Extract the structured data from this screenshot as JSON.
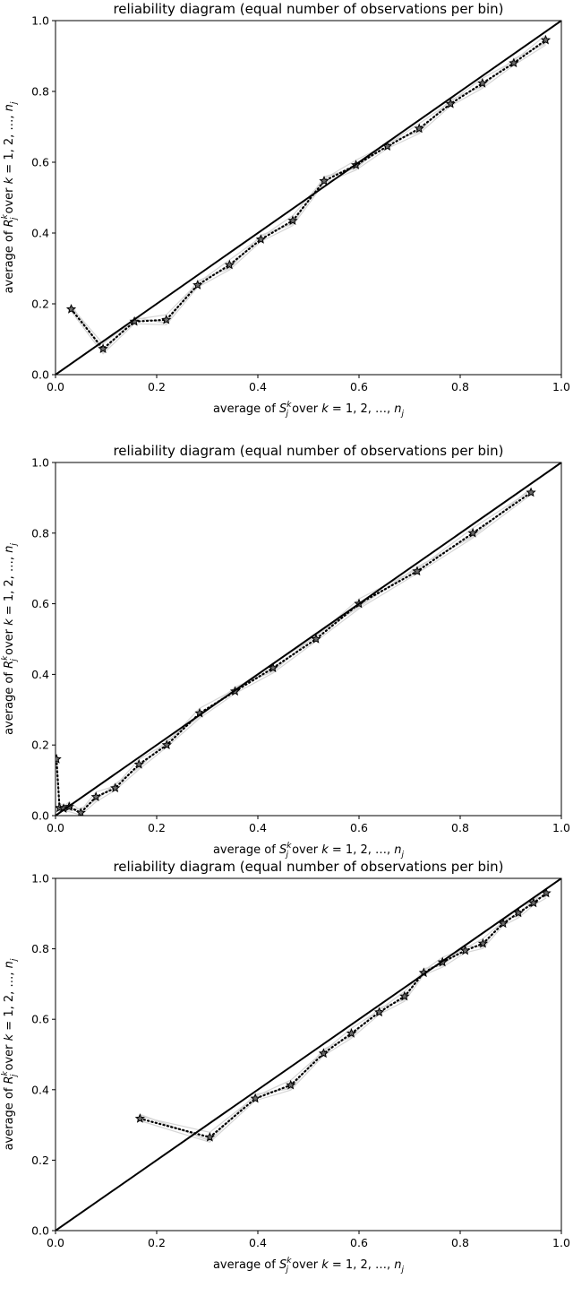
{
  "chart_data": [
    {
      "type": "line",
      "title": "reliability diagram (equal number of observations per bin)",
      "xlabel": {
        "prefix": "average of ",
        "var": "S",
        "sup": "k",
        "sub": "j",
        "mid": " over ",
        "k": "k",
        "eq": " = 1, 2, …, ",
        "n": "n",
        "nsub": "j"
      },
      "ylabel": {
        "prefix": "average of ",
        "var": "R",
        "sup": "k",
        "sub": "j",
        "mid": " over ",
        "k": "k",
        "eq": " = 1, 2, …, ",
        "n": "n",
        "nsub": "j"
      },
      "xlim": [
        0,
        1
      ],
      "ylim": [
        0,
        1
      ],
      "xticks": [
        "0.0",
        "0.2",
        "0.4",
        "0.6",
        "0.8",
        "1.0"
      ],
      "yticks": [
        "0.0",
        "0.2",
        "0.4",
        "0.6",
        "0.8",
        "1.0"
      ],
      "grid": false,
      "series": [
        {
          "style": "dotted-star",
          "x": [
            0.031,
            0.094,
            0.156,
            0.219,
            0.281,
            0.344,
            0.406,
            0.469,
            0.531,
            0.594,
            0.656,
            0.719,
            0.781,
            0.844,
            0.906,
            0.969
          ],
          "y": [
            0.185,
            0.073,
            0.15,
            0.155,
            0.253,
            0.31,
            0.382,
            0.435,
            0.547,
            0.592,
            0.645,
            0.695,
            0.765,
            0.823,
            0.88,
            0.945
          ]
        },
        {
          "style": "diagonal",
          "x": [
            0,
            1
          ],
          "y": [
            0,
            1
          ]
        }
      ]
    },
    {
      "type": "line",
      "title": "reliability diagram (equal number of observations per bin)",
      "xlabel": {
        "prefix": "average of ",
        "var": "S",
        "sup": "k",
        "sub": "j",
        "mid": " over ",
        "k": "k",
        "eq": " = 1, 2, …, ",
        "n": "n",
        "nsub": "j"
      },
      "ylabel": {
        "prefix": "average of ",
        "var": "R",
        "sup": "k",
        "sub": "j",
        "mid": " over ",
        "k": "k",
        "eq": " = 1, 2, …, ",
        "n": "n",
        "nsub": "j"
      },
      "xlim": [
        0,
        1
      ],
      "ylim": [
        0,
        1
      ],
      "xticks": [
        "0.0",
        "0.2",
        "0.4",
        "0.6",
        "0.8",
        "1.0"
      ],
      "yticks": [
        "0.0",
        "0.2",
        "0.4",
        "0.6",
        "0.8",
        "1.0"
      ],
      "grid": false,
      "series": [
        {
          "style": "dotted-star",
          "x": [
            0.002,
            0.008,
            0.016,
            0.027,
            0.05,
            0.08,
            0.118,
            0.165,
            0.22,
            0.285,
            0.355,
            0.43,
            0.515,
            0.6,
            0.715,
            0.825,
            0.94
          ],
          "y": [
            0.16,
            0.022,
            0.02,
            0.025,
            0.008,
            0.053,
            0.078,
            0.145,
            0.2,
            0.29,
            0.352,
            0.418,
            0.5,
            0.6,
            0.692,
            0.8,
            0.915
          ]
        },
        {
          "style": "diagonal",
          "x": [
            0,
            1
          ],
          "y": [
            0,
            1
          ]
        }
      ]
    },
    {
      "type": "line",
      "title": "reliability diagram (equal number of observations per bin)",
      "xlabel": {
        "prefix": "average of ",
        "var": "S",
        "sup": "k",
        "sub": "j",
        "mid": " over ",
        "k": "k",
        "eq": " = 1, 2, …, ",
        "n": "n",
        "nsub": "j"
      },
      "ylabel": {
        "prefix": "average of ",
        "var": "R",
        "sup": "k",
        "sub": "j",
        "mid": " over ",
        "k": "k",
        "eq": " = 1, 2, …, ",
        "n": "n",
        "nsub": "j"
      },
      "xlim": [
        0,
        1
      ],
      "ylim": [
        0,
        1
      ],
      "xticks": [
        "0.0",
        "0.2",
        "0.4",
        "0.6",
        "0.8",
        "1.0"
      ],
      "yticks": [
        "0.0",
        "0.2",
        "0.4",
        "0.6",
        "0.8",
        "1.0"
      ],
      "grid": false,
      "series": [
        {
          "style": "dotted-star",
          "x": [
            0.167,
            0.305,
            0.395,
            0.465,
            0.53,
            0.585,
            0.64,
            0.69,
            0.728,
            0.765,
            0.81,
            0.845,
            0.885,
            0.915,
            0.945,
            0.97
          ],
          "y": [
            0.318,
            0.265,
            0.375,
            0.413,
            0.503,
            0.56,
            0.62,
            0.665,
            0.732,
            0.762,
            0.795,
            0.815,
            0.872,
            0.902,
            0.93,
            0.958
          ]
        },
        {
          "style": "diagonal",
          "x": [
            0,
            1
          ],
          "y": [
            0,
            1
          ]
        }
      ]
    }
  ]
}
